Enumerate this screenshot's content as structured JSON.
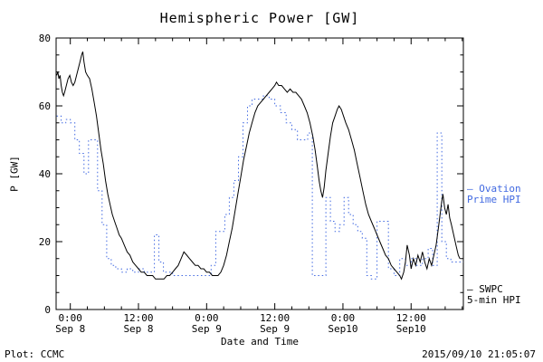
{
  "footer": {
    "left": "Plot: CCMC",
    "right": "2015/09/10 21:05:07"
  },
  "chart_data": {
    "type": "line",
    "title": "Hemispheric Power [GW]",
    "xlabel": "Date and Time",
    "ylabel": "P [GW]",
    "ylim": [
      0,
      80
    ],
    "x_range": [
      -2.5,
      69.2
    ],
    "x_unit": "hours from 2015-09-08 00:00 UT",
    "grid": false,
    "y_ticks": [
      0,
      20,
      40,
      60,
      80
    ],
    "x_ticks": [
      {
        "hour": 0,
        "top": "0:00",
        "bottom": "Sep 8"
      },
      {
        "hour": 12,
        "top": "12:00",
        "bottom": "Sep 8"
      },
      {
        "hour": 24,
        "top": "0:00",
        "bottom": "Sep 9"
      },
      {
        "hour": 36,
        "top": "12:00",
        "bottom": "Sep 9"
      },
      {
        "hour": 48,
        "top": "0:00",
        "bottom": "Sep10"
      },
      {
        "hour": 60,
        "top": "12:00",
        "bottom": "Sep10"
      }
    ],
    "series": [
      {
        "name": "Ovation Prime HPI",
        "color": "#4169e1",
        "style": "dotted",
        "step": true,
        "points": [
          [
            -2.4,
            57
          ],
          [
            -1.6,
            55
          ],
          [
            -0.8,
            56
          ],
          [
            0.0,
            55
          ],
          [
            0.8,
            50
          ],
          [
            1.6,
            46
          ],
          [
            2.4,
            40
          ],
          [
            3.2,
            50
          ],
          [
            4.0,
            50
          ],
          [
            4.8,
            35
          ],
          [
            5.6,
            25
          ],
          [
            6.4,
            15
          ],
          [
            7.2,
            13
          ],
          [
            8.0,
            12
          ],
          [
            9.0,
            11
          ],
          [
            10.0,
            12
          ],
          [
            11.0,
            11
          ],
          [
            12.0,
            12
          ],
          [
            13.0,
            11
          ],
          [
            14.0,
            11
          ],
          [
            14.8,
            22
          ],
          [
            15.6,
            14
          ],
          [
            16.4,
            11
          ],
          [
            17.2,
            11
          ],
          [
            18.0,
            10
          ],
          [
            19.0,
            10
          ],
          [
            20.0,
            10
          ],
          [
            21.0,
            10
          ],
          [
            22.0,
            10
          ],
          [
            23.0,
            10
          ],
          [
            24.0,
            10
          ],
          [
            24.8,
            13
          ],
          [
            25.6,
            23
          ],
          [
            26.4,
            23
          ],
          [
            27.2,
            28
          ],
          [
            28.0,
            33
          ],
          [
            28.8,
            38
          ],
          [
            29.6,
            45
          ],
          [
            30.4,
            55
          ],
          [
            31.2,
            60
          ],
          [
            32.0,
            62
          ],
          [
            33.0,
            62
          ],
          [
            34.0,
            63
          ],
          [
            35.0,
            62
          ],
          [
            36.0,
            60
          ],
          [
            37.0,
            58
          ],
          [
            38.0,
            55
          ],
          [
            39.0,
            53
          ],
          [
            40.0,
            50
          ],
          [
            41.0,
            50
          ],
          [
            41.8,
            52
          ],
          [
            42.6,
            10
          ],
          [
            44.2,
            10
          ],
          [
            45.0,
            33
          ],
          [
            45.8,
            26
          ],
          [
            46.6,
            23
          ],
          [
            47.4,
            25
          ],
          [
            48.2,
            33
          ],
          [
            49.0,
            28
          ],
          [
            49.8,
            25
          ],
          [
            50.6,
            23
          ],
          [
            51.4,
            21
          ],
          [
            52.2,
            10
          ],
          [
            53.0,
            9
          ],
          [
            54.0,
            26
          ],
          [
            55.0,
            26
          ],
          [
            56.0,
            12
          ],
          [
            57.0,
            10
          ],
          [
            58.0,
            15
          ],
          [
            59.0,
            13
          ],
          [
            60.0,
            15
          ],
          [
            61.0,
            13
          ],
          [
            62.0,
            15
          ],
          [
            63.0,
            18
          ],
          [
            63.8,
            13
          ],
          [
            64.6,
            52
          ],
          [
            65.4,
            20
          ],
          [
            66.2,
            15
          ],
          [
            67.0,
            14
          ],
          [
            68.0,
            14
          ],
          [
            68.6,
            14
          ]
        ]
      },
      {
        "name": "SWPC 5-min HPI",
        "color": "#000000",
        "style": "solid",
        "step": false,
        "points": [
          [
            -2.4,
            69
          ],
          [
            -2.2,
            70
          ],
          [
            -2.0,
            68
          ],
          [
            -1.8,
            69
          ],
          [
            -1.6,
            66
          ],
          [
            -1.4,
            64
          ],
          [
            -1.2,
            63
          ],
          [
            -1.0,
            64
          ],
          [
            -0.7,
            66
          ],
          [
            -0.4,
            68
          ],
          [
            -0.1,
            69
          ],
          [
            0.2,
            67
          ],
          [
            0.5,
            66
          ],
          [
            0.8,
            67
          ],
          [
            1.1,
            69
          ],
          [
            1.4,
            71
          ],
          [
            1.7,
            73
          ],
          [
            2.0,
            75
          ],
          [
            2.2,
            76
          ],
          [
            2.4,
            73
          ],
          [
            2.7,
            70
          ],
          [
            3.0,
            69
          ],
          [
            3.4,
            68
          ],
          [
            3.8,
            65
          ],
          [
            4.2,
            61
          ],
          [
            4.6,
            57
          ],
          [
            5.0,
            52
          ],
          [
            5.4,
            47
          ],
          [
            5.8,
            43
          ],
          [
            6.2,
            38
          ],
          [
            6.6,
            34
          ],
          [
            7.0,
            31
          ],
          [
            7.4,
            28
          ],
          [
            7.8,
            26
          ],
          [
            8.2,
            24
          ],
          [
            8.6,
            22
          ],
          [
            9.0,
            21
          ],
          [
            9.5,
            19
          ],
          [
            10.0,
            17
          ],
          [
            10.5,
            16
          ],
          [
            11.0,
            14
          ],
          [
            11.5,
            13
          ],
          [
            12.0,
            12
          ],
          [
            12.5,
            11
          ],
          [
            13.0,
            11
          ],
          [
            13.5,
            10
          ],
          [
            14.0,
            10
          ],
          [
            14.5,
            10
          ],
          [
            15.0,
            9
          ],
          [
            15.5,
            9
          ],
          [
            16.0,
            9
          ],
          [
            16.5,
            9
          ],
          [
            17.0,
            10
          ],
          [
            17.5,
            10
          ],
          [
            18.0,
            11
          ],
          [
            18.5,
            12
          ],
          [
            19.0,
            13
          ],
          [
            19.5,
            15
          ],
          [
            20.0,
            17
          ],
          [
            20.5,
            16
          ],
          [
            21.0,
            15
          ],
          [
            21.5,
            14
          ],
          [
            22.0,
            13
          ],
          [
            22.5,
            13
          ],
          [
            23.0,
            12
          ],
          [
            23.5,
            12
          ],
          [
            24.0,
            11
          ],
          [
            24.5,
            11
          ],
          [
            25.0,
            10
          ],
          [
            25.5,
            10
          ],
          [
            26.0,
            10
          ],
          [
            26.5,
            11
          ],
          [
            27.0,
            13
          ],
          [
            27.5,
            16
          ],
          [
            28.0,
            20
          ],
          [
            28.5,
            24
          ],
          [
            29.0,
            29
          ],
          [
            29.5,
            34
          ],
          [
            30.0,
            39
          ],
          [
            30.5,
            44
          ],
          [
            31.0,
            48
          ],
          [
            31.5,
            52
          ],
          [
            32.0,
            55
          ],
          [
            32.5,
            58
          ],
          [
            33.0,
            60
          ],
          [
            33.5,
            61
          ],
          [
            34.0,
            62
          ],
          [
            34.5,
            63
          ],
          [
            35.0,
            64
          ],
          [
            35.5,
            65
          ],
          [
            36.0,
            66
          ],
          [
            36.3,
            67
          ],
          [
            36.7,
            66
          ],
          [
            37.2,
            66
          ],
          [
            37.7,
            65
          ],
          [
            38.2,
            64
          ],
          [
            38.7,
            65
          ],
          [
            39.2,
            64
          ],
          [
            39.7,
            64
          ],
          [
            40.2,
            63
          ],
          [
            40.7,
            62
          ],
          [
            41.2,
            60
          ],
          [
            41.7,
            58
          ],
          [
            42.2,
            55
          ],
          [
            42.7,
            51
          ],
          [
            43.1,
            47
          ],
          [
            43.5,
            42
          ],
          [
            43.8,
            38
          ],
          [
            44.1,
            35
          ],
          [
            44.4,
            33
          ],
          [
            44.7,
            36
          ],
          [
            45.0,
            41
          ],
          [
            45.4,
            46
          ],
          [
            45.8,
            51
          ],
          [
            46.2,
            55
          ],
          [
            46.6,
            57
          ],
          [
            47.0,
            59
          ],
          [
            47.3,
            60
          ],
          [
            47.7,
            59
          ],
          [
            48.1,
            57
          ],
          [
            48.5,
            55
          ],
          [
            49.0,
            53
          ],
          [
            49.5,
            50
          ],
          [
            50.0,
            47
          ],
          [
            50.5,
            43
          ],
          [
            51.0,
            39
          ],
          [
            51.5,
            35
          ],
          [
            52.0,
            31
          ],
          [
            52.5,
            28
          ],
          [
            53.0,
            26
          ],
          [
            53.5,
            24
          ],
          [
            54.0,
            22
          ],
          [
            54.5,
            20
          ],
          [
            55.0,
            18
          ],
          [
            55.5,
            16
          ],
          [
            56.0,
            15
          ],
          [
            56.5,
            13
          ],
          [
            57.0,
            12
          ],
          [
            57.5,
            11
          ],
          [
            58.0,
            10
          ],
          [
            58.3,
            9
          ],
          [
            58.7,
            11
          ],
          [
            59.0,
            14
          ],
          [
            59.3,
            19
          ],
          [
            59.7,
            16
          ],
          [
            60.0,
            12
          ],
          [
            60.4,
            15
          ],
          [
            60.8,
            13
          ],
          [
            61.2,
            16
          ],
          [
            61.6,
            14
          ],
          [
            62.0,
            17
          ],
          [
            62.4,
            14
          ],
          [
            62.8,
            12
          ],
          [
            63.2,
            15
          ],
          [
            63.6,
            13
          ],
          [
            64.0,
            16
          ],
          [
            64.4,
            19
          ],
          [
            64.8,
            24
          ],
          [
            65.1,
            28
          ],
          [
            65.4,
            32
          ],
          [
            65.6,
            34
          ],
          [
            65.9,
            30
          ],
          [
            66.2,
            28
          ],
          [
            66.5,
            31
          ],
          [
            66.8,
            27
          ],
          [
            67.1,
            25
          ],
          [
            67.5,
            22
          ],
          [
            67.9,
            19
          ],
          [
            68.3,
            16
          ],
          [
            68.6,
            15
          ]
        ]
      }
    ],
    "legend": [
      {
        "dash": "–",
        "line1": "Ovation",
        "line2": "Prime HPI",
        "color": "#4169e1"
      },
      {
        "dash": "–",
        "line1": "SWPC",
        "line2": "5-min HPI",
        "color": "#000000"
      }
    ]
  }
}
